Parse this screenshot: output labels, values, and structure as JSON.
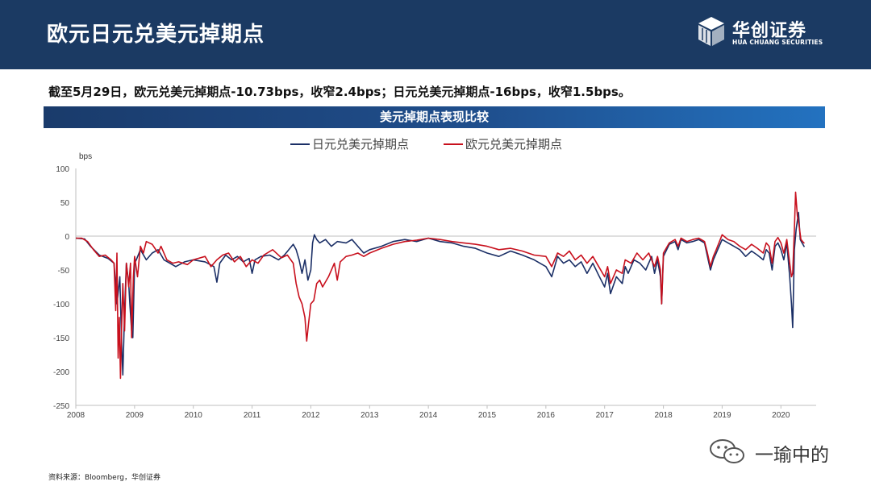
{
  "header": {
    "title": "欧元日元兑美元掉期点",
    "logo_cn": "华创证券",
    "logo_en": "HUA CHUANG SECURITIES"
  },
  "subtitle": "截至5月29日，欧元兑美元掉期点-10.73bps，收窄2.4bps；日元兑美元掉期点-16bps，收窄1.5bps。",
  "chart_banner": "美元掉期点表现比较",
  "source": "资料来源：Bloomberg，华创证券",
  "watermark": "一瑜中的",
  "colors": {
    "header_bg": "#1b3a63",
    "jpy": "#1b2f66",
    "eur": "#c8101d"
  },
  "chart_data": {
    "type": "line",
    "ylabel": "bps",
    "ylim": [
      -250,
      100
    ],
    "yticks": [
      100,
      50,
      0,
      -50,
      -100,
      -150,
      -200,
      -250
    ],
    "xlim": [
      2008,
      2020.6
    ],
    "xticks": [
      "2008",
      "2009",
      "2010",
      "2011",
      "2012",
      "2013",
      "2014",
      "2015",
      "2016",
      "2017",
      "2018",
      "2019",
      "2020"
    ],
    "grid": false,
    "legend_position": "top-center",
    "series": [
      {
        "name": "日元兑美元掉期点",
        "color": "#1b2f66",
        "points": [
          [
            2008.0,
            -3
          ],
          [
            2008.15,
            -4
          ],
          [
            2008.25,
            -15
          ],
          [
            2008.4,
            -28
          ],
          [
            2008.55,
            -33
          ],
          [
            2008.65,
            -40
          ],
          [
            2008.7,
            -100
          ],
          [
            2008.75,
            -60
          ],
          [
            2008.78,
            -160
          ],
          [
            2008.8,
            -205
          ],
          [
            2008.83,
            -110
          ],
          [
            2008.86,
            -40
          ],
          [
            2008.9,
            -70
          ],
          [
            2008.92,
            -100
          ],
          [
            2008.95,
            -140
          ],
          [
            2008.97,
            -150
          ],
          [
            2009.0,
            -40
          ],
          [
            2009.03,
            -35
          ],
          [
            2009.1,
            -20
          ],
          [
            2009.2,
            -35
          ],
          [
            2009.3,
            -25
          ],
          [
            2009.4,
            -20
          ],
          [
            2009.5,
            -35
          ],
          [
            2009.6,
            -40
          ],
          [
            2009.7,
            -45
          ],
          [
            2009.85,
            -38
          ],
          [
            2010.0,
            -35
          ],
          [
            2010.2,
            -38
          ],
          [
            2010.35,
            -45
          ],
          [
            2010.4,
            -68
          ],
          [
            2010.45,
            -40
          ],
          [
            2010.55,
            -28
          ],
          [
            2010.65,
            -35
          ],
          [
            2010.75,
            -30
          ],
          [
            2010.85,
            -38
          ],
          [
            2010.95,
            -33
          ],
          [
            2011.0,
            -55
          ],
          [
            2011.05,
            -35
          ],
          [
            2011.15,
            -30
          ],
          [
            2011.3,
            -28
          ],
          [
            2011.45,
            -35
          ],
          [
            2011.55,
            -28
          ],
          [
            2011.7,
            -12
          ],
          [
            2011.75,
            -20
          ],
          [
            2011.8,
            -35
          ],
          [
            2011.85,
            -55
          ],
          [
            2011.9,
            -35
          ],
          [
            2011.95,
            -65
          ],
          [
            2012.0,
            -50
          ],
          [
            2012.03,
            -10
          ],
          [
            2012.06,
            2
          ],
          [
            2012.1,
            -5
          ],
          [
            2012.15,
            -10
          ],
          [
            2012.25,
            -5
          ],
          [
            2012.35,
            -15
          ],
          [
            2012.45,
            -8
          ],
          [
            2012.6,
            -10
          ],
          [
            2012.7,
            -5
          ],
          [
            2012.8,
            -15
          ],
          [
            2012.9,
            -25
          ],
          [
            2013.0,
            -20
          ],
          [
            2013.2,
            -15
          ],
          [
            2013.4,
            -8
          ],
          [
            2013.6,
            -5
          ],
          [
            2013.8,
            -8
          ],
          [
            2014.0,
            -3
          ],
          [
            2014.2,
            -8
          ],
          [
            2014.4,
            -10
          ],
          [
            2014.6,
            -15
          ],
          [
            2014.8,
            -18
          ],
          [
            2015.0,
            -25
          ],
          [
            2015.2,
            -30
          ],
          [
            2015.4,
            -22
          ],
          [
            2015.6,
            -28
          ],
          [
            2015.8,
            -35
          ],
          [
            2016.0,
            -45
          ],
          [
            2016.1,
            -60
          ],
          [
            2016.2,
            -30
          ],
          [
            2016.3,
            -40
          ],
          [
            2016.4,
            -35
          ],
          [
            2016.5,
            -45
          ],
          [
            2016.6,
            -38
          ],
          [
            2016.7,
            -55
          ],
          [
            2016.8,
            -40
          ],
          [
            2016.9,
            -58
          ],
          [
            2017.0,
            -75
          ],
          [
            2017.05,
            -55
          ],
          [
            2017.1,
            -85
          ],
          [
            2017.2,
            -60
          ],
          [
            2017.3,
            -70
          ],
          [
            2017.35,
            -45
          ],
          [
            2017.4,
            -55
          ],
          [
            2017.5,
            -35
          ],
          [
            2017.6,
            -40
          ],
          [
            2017.7,
            -50
          ],
          [
            2017.8,
            -30
          ],
          [
            2017.85,
            -55
          ],
          [
            2017.9,
            -35
          ],
          [
            2017.95,
            -60
          ],
          [
            2017.97,
            -100
          ],
          [
            2018.0,
            -30
          ],
          [
            2018.1,
            -12
          ],
          [
            2018.2,
            -8
          ],
          [
            2018.25,
            -20
          ],
          [
            2018.3,
            -5
          ],
          [
            2018.4,
            -10
          ],
          [
            2018.5,
            -8
          ],
          [
            2018.6,
            -5
          ],
          [
            2018.7,
            -10
          ],
          [
            2018.75,
            -30
          ],
          [
            2018.8,
            -50
          ],
          [
            2018.85,
            -35
          ],
          [
            2018.9,
            -25
          ],
          [
            2019.0,
            -5
          ],
          [
            2019.1,
            -10
          ],
          [
            2019.2,
            -15
          ],
          [
            2019.3,
            -20
          ],
          [
            2019.4,
            -30
          ],
          [
            2019.5,
            -22
          ],
          [
            2019.6,
            -28
          ],
          [
            2019.7,
            -35
          ],
          [
            2019.75,
            -20
          ],
          [
            2019.8,
            -25
          ],
          [
            2019.85,
            -50
          ],
          [
            2019.9,
            -15
          ],
          [
            2019.95,
            -10
          ],
          [
            2020.0,
            -20
          ],
          [
            2020.05,
            -35
          ],
          [
            2020.1,
            -10
          ],
          [
            2020.15,
            -60
          ],
          [
            2020.18,
            -100
          ],
          [
            2020.2,
            -135
          ],
          [
            2020.23,
            -20
          ],
          [
            2020.26,
            10
          ],
          [
            2020.3,
            35
          ],
          [
            2020.33,
            -5
          ],
          [
            2020.36,
            -10
          ],
          [
            2020.4,
            -16
          ]
        ]
      },
      {
        "name": "欧元兑美元掉期点",
        "color": "#c8101d",
        "points": [
          [
            2008.0,
            -3
          ],
          [
            2008.1,
            -3
          ],
          [
            2008.2,
            -8
          ],
          [
            2008.3,
            -20
          ],
          [
            2008.4,
            -30
          ],
          [
            2008.5,
            -28
          ],
          [
            2008.6,
            -35
          ],
          [
            2008.65,
            -40
          ],
          [
            2008.68,
            -110
          ],
          [
            2008.7,
            -25
          ],
          [
            2008.72,
            -180
          ],
          [
            2008.74,
            -120
          ],
          [
            2008.76,
            -210
          ],
          [
            2008.78,
            -135
          ],
          [
            2008.8,
            -70
          ],
          [
            2008.83,
            -140
          ],
          [
            2008.86,
            -40
          ],
          [
            2008.9,
            -75
          ],
          [
            2008.93,
            -40
          ],
          [
            2008.95,
            -150
          ],
          [
            2008.98,
            -60
          ],
          [
            2009.0,
            -30
          ],
          [
            2009.05,
            -60
          ],
          [
            2009.1,
            -15
          ],
          [
            2009.15,
            -25
          ],
          [
            2009.2,
            -8
          ],
          [
            2009.3,
            -12
          ],
          [
            2009.4,
            -25
          ],
          [
            2009.45,
            -15
          ],
          [
            2009.55,
            -35
          ],
          [
            2009.65,
            -40
          ],
          [
            2009.75,
            -38
          ],
          [
            2009.9,
            -42
          ],
          [
            2010.0,
            -35
          ],
          [
            2010.2,
            -30
          ],
          [
            2010.3,
            -45
          ],
          [
            2010.4,
            -35
          ],
          [
            2010.5,
            -28
          ],
          [
            2010.6,
            -25
          ],
          [
            2010.7,
            -38
          ],
          [
            2010.8,
            -30
          ],
          [
            2010.9,
            -45
          ],
          [
            2011.0,
            -35
          ],
          [
            2011.1,
            -40
          ],
          [
            2011.2,
            -28
          ],
          [
            2011.35,
            -20
          ],
          [
            2011.5,
            -32
          ],
          [
            2011.6,
            -28
          ],
          [
            2011.7,
            -40
          ],
          [
            2011.75,
            -70
          ],
          [
            2011.8,
            -90
          ],
          [
            2011.85,
            -100
          ],
          [
            2011.9,
            -120
          ],
          [
            2011.93,
            -155
          ],
          [
            2011.96,
            -130
          ],
          [
            2012.0,
            -100
          ],
          [
            2012.05,
            -95
          ],
          [
            2012.1,
            -70
          ],
          [
            2012.15,
            -65
          ],
          [
            2012.2,
            -75
          ],
          [
            2012.3,
            -60
          ],
          [
            2012.4,
            -40
          ],
          [
            2012.45,
            -65
          ],
          [
            2012.5,
            -38
          ],
          [
            2012.6,
            -30
          ],
          [
            2012.7,
            -28
          ],
          [
            2012.8,
            -25
          ],
          [
            2012.9,
            -30
          ],
          [
            2013.0,
            -25
          ],
          [
            2013.2,
            -18
          ],
          [
            2013.4,
            -12
          ],
          [
            2013.6,
            -8
          ],
          [
            2013.8,
            -6
          ],
          [
            2014.0,
            -3
          ],
          [
            2014.2,
            -5
          ],
          [
            2014.4,
            -8
          ],
          [
            2014.6,
            -10
          ],
          [
            2014.8,
            -12
          ],
          [
            2015.0,
            -15
          ],
          [
            2015.2,
            -20
          ],
          [
            2015.4,
            -18
          ],
          [
            2015.6,
            -22
          ],
          [
            2015.8,
            -28
          ],
          [
            2016.0,
            -30
          ],
          [
            2016.1,
            -45
          ],
          [
            2016.2,
            -25
          ],
          [
            2016.3,
            -30
          ],
          [
            2016.4,
            -22
          ],
          [
            2016.5,
            -35
          ],
          [
            2016.6,
            -28
          ],
          [
            2016.7,
            -40
          ],
          [
            2016.8,
            -30
          ],
          [
            2016.9,
            -45
          ],
          [
            2017.0,
            -60
          ],
          [
            2017.05,
            -45
          ],
          [
            2017.1,
            -70
          ],
          [
            2017.2,
            -50
          ],
          [
            2017.3,
            -55
          ],
          [
            2017.35,
            -35
          ],
          [
            2017.45,
            -40
          ],
          [
            2017.55,
            -25
          ],
          [
            2017.65,
            -35
          ],
          [
            2017.75,
            -25
          ],
          [
            2017.85,
            -45
          ],
          [
            2017.9,
            -30
          ],
          [
            2017.95,
            -50
          ],
          [
            2017.97,
            -100
          ],
          [
            2018.0,
            -25
          ],
          [
            2018.1,
            -10
          ],
          [
            2018.2,
            -5
          ],
          [
            2018.25,
            -15
          ],
          [
            2018.3,
            -3
          ],
          [
            2018.4,
            -8
          ],
          [
            2018.5,
            -5
          ],
          [
            2018.6,
            -3
          ],
          [
            2018.7,
            -8
          ],
          [
            2018.75,
            -25
          ],
          [
            2018.8,
            -45
          ],
          [
            2018.85,
            -30
          ],
          [
            2018.9,
            -20
          ],
          [
            2019.0,
            2
          ],
          [
            2019.1,
            -5
          ],
          [
            2019.2,
            -8
          ],
          [
            2019.3,
            -15
          ],
          [
            2019.4,
            -20
          ],
          [
            2019.5,
            -12
          ],
          [
            2019.6,
            -18
          ],
          [
            2019.7,
            -25
          ],
          [
            2019.75,
            -10
          ],
          [
            2019.8,
            -15
          ],
          [
            2019.85,
            -40
          ],
          [
            2019.9,
            -8
          ],
          [
            2019.95,
            -2
          ],
          [
            2020.0,
            -10
          ],
          [
            2020.05,
            -25
          ],
          [
            2020.1,
            -5
          ],
          [
            2020.15,
            -40
          ],
          [
            2020.18,
            -60
          ],
          [
            2020.2,
            -55
          ],
          [
            2020.23,
            10
          ],
          [
            2020.25,
            65
          ],
          [
            2020.28,
            30
          ],
          [
            2020.31,
            15
          ],
          [
            2020.34,
            -5
          ],
          [
            2020.37,
            -8
          ],
          [
            2020.4,
            -10.73
          ]
        ]
      }
    ]
  }
}
